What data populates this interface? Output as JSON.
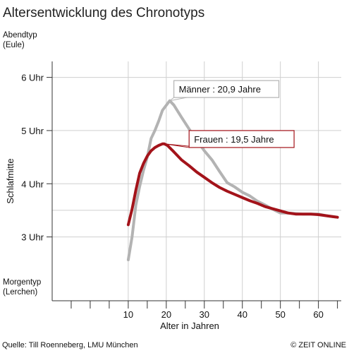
{
  "chart_data": {
    "type": "line",
    "title": "Altersentwicklung des Chronotyps",
    "xlabel": "Alter in Jahren",
    "ylabel": "Schlafmitte",
    "xlim": [
      -10,
      66
    ],
    "ylim": [
      1.8,
      6.3
    ],
    "x_ticks": [
      -5,
      0,
      5,
      10,
      15,
      20,
      25,
      30,
      35,
      40,
      45,
      50,
      55,
      60,
      65
    ],
    "x_tick_labels": [
      {
        "value": 10,
        "label": "10"
      },
      {
        "value": 20,
        "label": "20"
      },
      {
        "value": 30,
        "label": "30"
      },
      {
        "value": 40,
        "label": "40"
      },
      {
        "value": 50,
        "label": "50"
      },
      {
        "value": 60,
        "label": "60"
      }
    ],
    "y_tick_labels": [
      {
        "value": 3,
        "label": "3 Uhr"
      },
      {
        "value": 4,
        "label": "4 Uhr"
      },
      {
        "value": 5,
        "label": "5 Uhr"
      },
      {
        "value": 6,
        "label": "6 Uhr"
      }
    ],
    "y_gridlines": [
      3,
      3.5,
      4,
      5,
      6
    ],
    "x_gridlines": [
      10,
      20,
      30,
      40,
      50,
      60
    ],
    "y_top_label": [
      "Abendtyp",
      "(Eule)"
    ],
    "y_bottom_label": [
      "Morgentyp",
      "(Lerchen)"
    ],
    "series": [
      {
        "color": "#b3b3b3",
        "x": [
          10,
          11,
          12,
          13,
          14,
          15,
          16,
          17,
          18,
          19,
          20.9,
          22,
          24,
          26,
          28,
          30,
          32,
          34,
          36,
          38,
          40,
          42,
          44,
          46,
          48,
          50,
          52,
          54,
          56,
          58,
          60,
          62,
          64,
          65
        ],
        "y": [
          2.57,
          3.0,
          3.6,
          3.95,
          4.25,
          4.5,
          4.85,
          5.0,
          5.18,
          5.38,
          5.56,
          5.48,
          5.25,
          5.03,
          4.82,
          4.62,
          4.45,
          4.23,
          4.02,
          3.94,
          3.84,
          3.77,
          3.67,
          3.6,
          3.52,
          3.45,
          3.45,
          3.44,
          3.43,
          3.43,
          3.43,
          3.4,
          3.38,
          3.37
        ]
      },
      {
        "color": "#a3131a",
        "x": [
          10,
          11,
          12,
          13,
          14,
          15,
          16,
          17,
          18,
          19,
          19.5,
          20.3,
          22,
          24,
          26,
          28,
          30,
          32,
          34,
          36,
          38,
          40,
          42,
          44,
          46,
          48,
          50,
          52,
          54,
          56,
          58,
          60,
          62,
          64,
          65
        ],
        "y": [
          3.23,
          3.52,
          3.88,
          4.2,
          4.38,
          4.52,
          4.62,
          4.68,
          4.72,
          4.75,
          4.75,
          4.72,
          4.6,
          4.45,
          4.34,
          4.22,
          4.12,
          4.02,
          3.93,
          3.86,
          3.8,
          3.74,
          3.68,
          3.63,
          3.57,
          3.53,
          3.49,
          3.45,
          3.43,
          3.43,
          3.43,
          3.42,
          3.4,
          3.38,
          3.37
        ]
      }
    ],
    "annotations": [
      {
        "text": "Männer : 20,9 Jahre",
        "point_x": 20.9,
        "point_y": 5.56,
        "box_x": 22,
        "box_y": 5.94,
        "border": "#b3b3b3"
      },
      {
        "text": "Frauen : 19,5 Jahre",
        "point_x": 19.5,
        "point_y": 4.75,
        "box_x": 26,
        "box_y": 5.0,
        "border": "#a3131a"
      }
    ],
    "grid": true,
    "legend": "none"
  },
  "footer": {
    "source": "Quelle: Till Roenneberg, LMU München",
    "credit": "© ZEIT ONLINE"
  }
}
